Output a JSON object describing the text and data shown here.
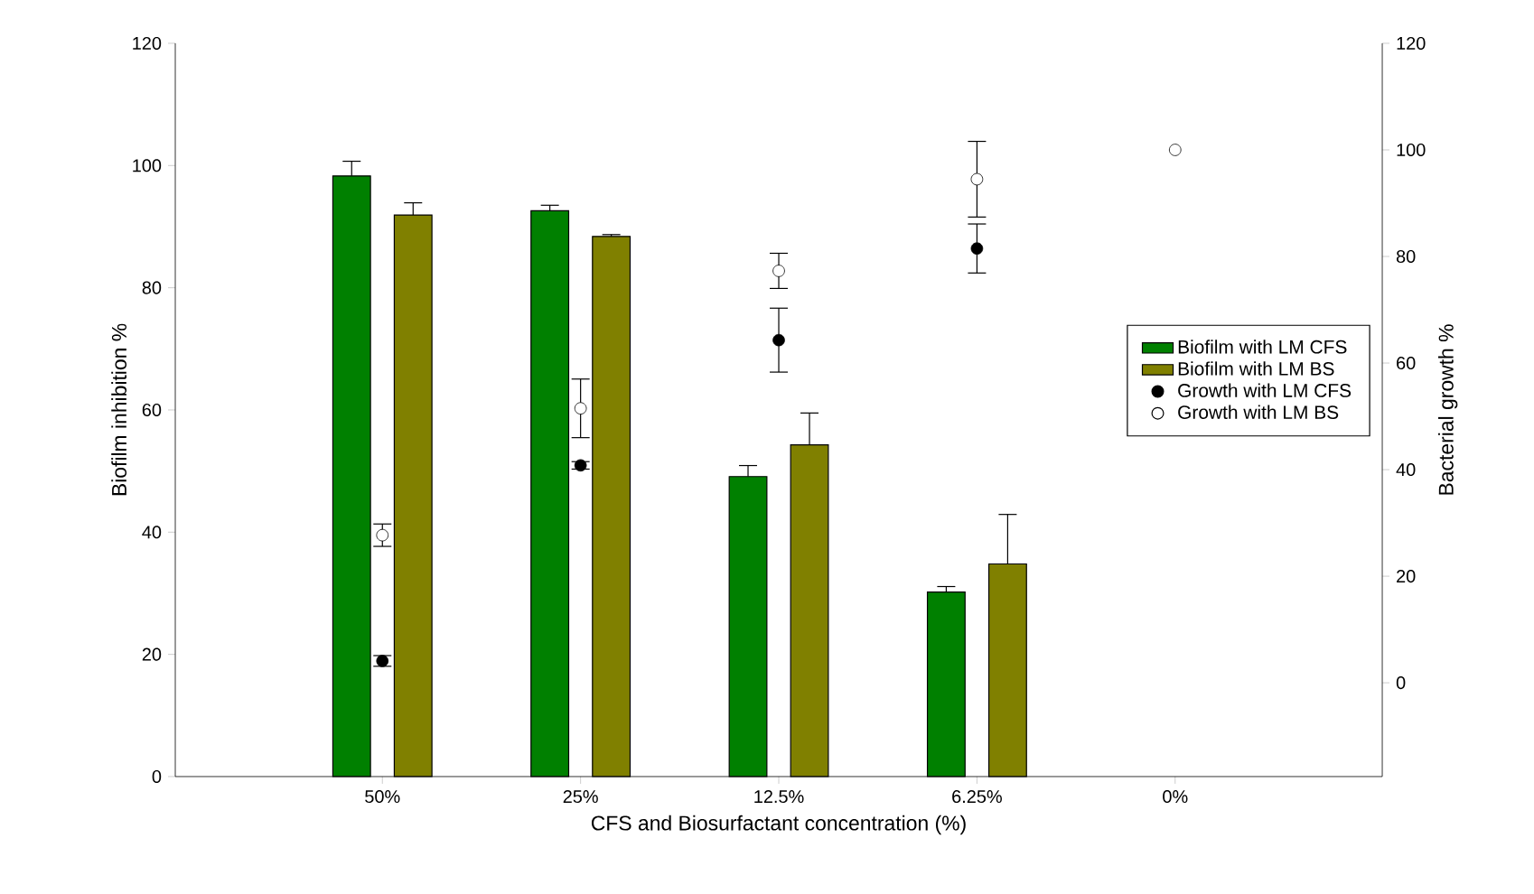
{
  "chart_data": {
    "type": "bar",
    "xlabel": "CFS and Biosurfactant concentration (%)",
    "ylabel": "Biofilm inhibition %",
    "y2label": "Bacterial growth %",
    "categories": [
      "50%",
      "25%",
      "12.5%",
      "6.25%",
      "0%"
    ],
    "ylim": [
      0,
      120
    ],
    "yticks": [
      0,
      20,
      40,
      60,
      80,
      100,
      120
    ],
    "y2lim": [
      -17.6,
      120
    ],
    "y2ticks": [
      0,
      20,
      40,
      60,
      80,
      100,
      120
    ],
    "legend": "right",
    "series": [
      {
        "name": "Biofilm with LM CFS",
        "color": "#008000",
        "values": [
          98.3,
          92.6,
          49.1,
          30.2,
          null
        ],
        "errors": [
          2.4,
          0.9,
          1.8,
          0.9,
          null
        ]
      },
      {
        "name": "Biofilm with LM BS",
        "color": "#808000",
        "values": [
          91.9,
          88.4,
          54.3,
          34.8,
          null
        ],
        "errors": [
          2,
          0.3,
          5.2,
          8.1,
          null
        ]
      },
      {
        "name": "Growth with LM CFS",
        "type": "scatter",
        "axis": "y2",
        "marker": "circle",
        "color": "#000000",
        "values": [
          4.1,
          40.8,
          64.3,
          81.5,
          null
        ],
        "errors": [
          1,
          0.7,
          6,
          4.6,
          null
        ]
      },
      {
        "name": "Growth with LM BS",
        "type": "scatter",
        "axis": "y2",
        "marker": "circle",
        "color": "#ffffff",
        "values": [
          27.7,
          51.5,
          77.3,
          94.5,
          100
        ],
        "errors": [
          2.1,
          5.5,
          3.3,
          7.1,
          null
        ]
      }
    ]
  }
}
